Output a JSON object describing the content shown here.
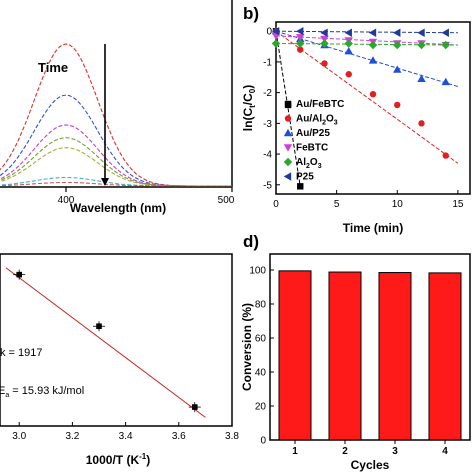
{
  "colors": {
    "axis": "#000000",
    "fit_red": "#cc2222",
    "bar_red": "#ff1a1a",
    "series": {
      "Au/FeBTC": "#000000",
      "Au/Al2O3": "#e02020",
      "Au/P25": "#1f4fd6",
      "FeBTC": "#d040d8",
      "Al2O3": "#2aa82a",
      "P25": "#203a9a"
    }
  },
  "chart_data": [
    {
      "id": "a",
      "type": "line",
      "title": "",
      "xlabel": "Wavelength (nm)",
      "ylabel": "",
      "xlim": [
        300,
        500
      ],
      "xticks": [
        400,
        500
      ],
      "annotation": "Time",
      "peak_x": 400,
      "curves": [
        {
          "peak": 1.0,
          "color": "#d83030",
          "dash": "4 2"
        },
        {
          "peak": 0.64,
          "color": "#3050d0",
          "dash": "4 2"
        },
        {
          "peak": 0.43,
          "color": "#c040d0",
          "dash": "4 2"
        },
        {
          "peak": 0.34,
          "color": "#70a030",
          "dash": "4 2"
        },
        {
          "peak": 0.27,
          "color": "#a0b040",
          "dash": "4 2"
        },
        {
          "peak": 0.06,
          "color": "#40b0d0",
          "dash": "4 2"
        },
        {
          "peak": 0.025,
          "color": "#c06060",
          "dash": "4 2"
        }
      ]
    },
    {
      "id": "b",
      "panel_label": "b)",
      "type": "scatter",
      "xlabel": "Time (min)",
      "ylabel": "ln(C",
      "ylabel_sub1": "t",
      "ylabel_mid": "/C",
      "ylabel_sub2": "0",
      "ylabel_end": ")",
      "xlim": [
        0,
        16
      ],
      "ylim": [
        -5.3,
        0.3
      ],
      "xticks": [
        0,
        5,
        10,
        15
      ],
      "yticks": [
        0,
        -1,
        -2,
        -3,
        -4,
        -5
      ],
      "legend_position": "lower-right",
      "series": [
        {
          "name": "Au/FeBTC",
          "legend": [
            "Au/FeBTC"
          ],
          "marker": "square",
          "color": "#000000",
          "x": [
            0,
            1,
            2
          ],
          "y": [
            0,
            -2.4,
            -5.05
          ],
          "fit": [
            [
              0,
              0
            ],
            [
              2,
              -5.05
            ]
          ]
        },
        {
          "name": "Au/Al2O3",
          "legend": [
            "Au/Al",
            "2",
            "O",
            "3"
          ],
          "marker": "circle",
          "color": "#e02020",
          "x": [
            0,
            2,
            4,
            6,
            8,
            10,
            12,
            14
          ],
          "y": [
            0,
            -0.6,
            -1.05,
            -1.4,
            -2.05,
            -2.4,
            -3.0,
            -4.05
          ],
          "fit": [
            [
              0,
              0
            ],
            [
              15,
              -4.3
            ]
          ]
        },
        {
          "name": "Au/P25",
          "legend": [
            "Au/P25"
          ],
          "marker": "triangle-up",
          "color": "#1f4fd6",
          "x": [
            0,
            2,
            4,
            6,
            8,
            10,
            12,
            14
          ],
          "y": [
            0,
            -0.25,
            -0.45,
            -0.65,
            -0.95,
            -1.25,
            -1.55,
            -1.65
          ],
          "fit": [
            [
              0,
              0
            ],
            [
              15,
              -1.8
            ]
          ]
        },
        {
          "name": "FeBTC",
          "legend": [
            "FeBTC"
          ],
          "marker": "triangle-down",
          "color": "#d040d8",
          "x": [
            0,
            2,
            4,
            6,
            8,
            10,
            12,
            14
          ],
          "y": [
            -0.15,
            -0.2,
            -0.25,
            -0.3,
            -0.35,
            -0.4,
            -0.4,
            -0.45
          ],
          "fit": [
            [
              0,
              -0.15
            ],
            [
              15,
              -0.45
            ]
          ]
        },
        {
          "name": "Al2O3",
          "legend": [
            "Al",
            "2",
            "O",
            "3"
          ],
          "marker": "diamond",
          "color": "#2aa82a",
          "x": [
            0,
            2,
            4,
            6,
            8,
            10,
            12,
            14
          ],
          "y": [
            -0.4,
            -0.4,
            -0.4,
            -0.4,
            -0.45,
            -0.45,
            -0.45,
            -0.45
          ],
          "fit": [
            [
              0,
              -0.4
            ],
            [
              15,
              -0.45
            ]
          ]
        },
        {
          "name": "P25",
          "legend": [
            "P25"
          ],
          "marker": "triangle-left",
          "color": "#203a9a",
          "x": [
            0,
            2,
            4,
            6,
            8,
            10,
            12,
            14
          ],
          "y": [
            0,
            0,
            -0.05,
            -0.05,
            -0.05,
            -0.05,
            -0.05,
            -0.05
          ],
          "fit": [
            [
              0,
              0
            ],
            [
              15,
              -0.05
            ]
          ]
        }
      ]
    },
    {
      "id": "c",
      "type": "scatter",
      "xlabel": "1000/T (K",
      "xlabel_sup": "-1",
      "xlabel_end": ")",
      "ylabel": "",
      "xlim": [
        2.8,
        3.8
      ],
      "xticks": [
        3.0,
        3.2,
        3.4,
        3.6,
        3.8
      ],
      "xtick_labels": [
        "3.0",
        "3.2",
        "3.4",
        "3.6",
        "3.8"
      ],
      "ylim": [
        0,
        1
      ],
      "points": {
        "x": [
          3.0,
          3.3,
          3.66
        ],
        "y": [
          0.88,
          0.58,
          0.11
        ]
      },
      "fit": [
        [
          2.95,
          0.92
        ],
        [
          3.7,
          0.05
        ]
      ],
      "annotations": [
        {
          "text": "k = 1917",
          "x": 2.8,
          "y": 0.47
        },
        {
          "text": "E",
          "sub": "a",
          "text_after": " = 15.93 kJ/mol",
          "x": 2.8,
          "y": 0.22
        }
      ]
    },
    {
      "id": "d",
      "panel_label": "d)",
      "type": "bar",
      "xlabel": "Cycles",
      "ylabel": "Conversion (%)",
      "categories": [
        "1",
        "2",
        "3",
        "4"
      ],
      "values": [
        99.5,
        98.8,
        98.5,
        98.3
      ],
      "ylim": [
        0,
        100
      ],
      "yticks": [
        0,
        20,
        40,
        60,
        80,
        100
      ]
    }
  ]
}
